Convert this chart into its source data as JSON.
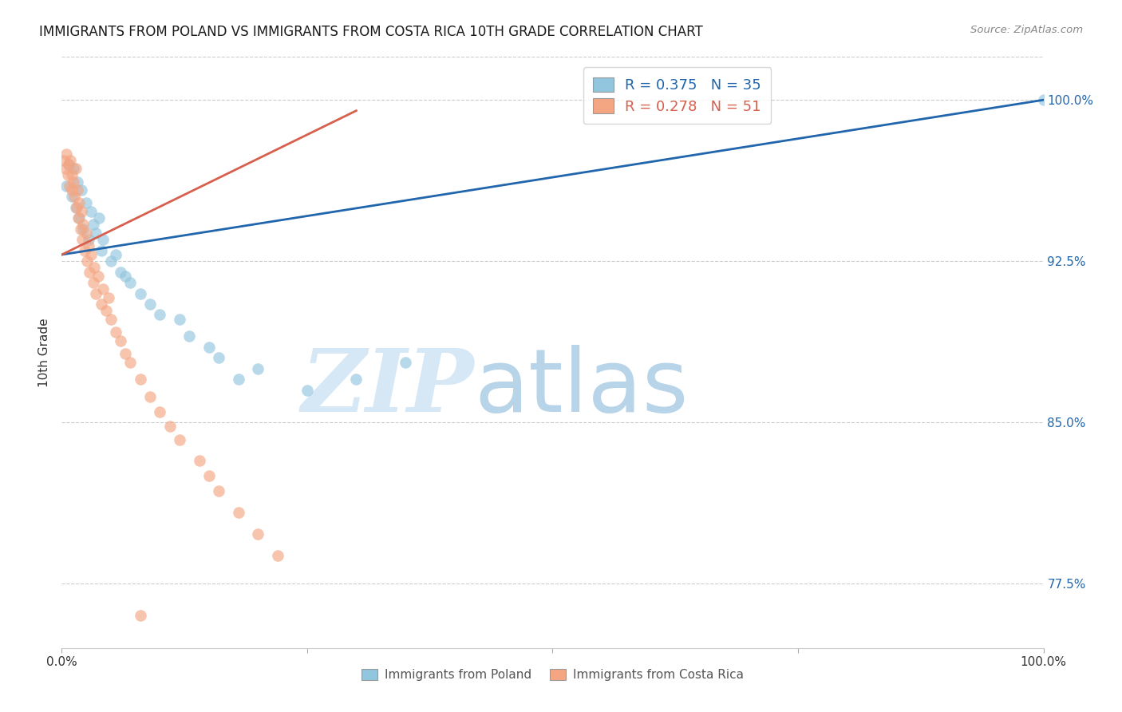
{
  "title": "IMMIGRANTS FROM POLAND VS IMMIGRANTS FROM COSTA RICA 10TH GRADE CORRELATION CHART",
  "source": "Source: ZipAtlas.com",
  "ylabel": "10th Grade",
  "right_yticks": [
    "100.0%",
    "92.5%",
    "85.0%",
    "77.5%"
  ],
  "right_ytick_vals": [
    1.0,
    0.925,
    0.85,
    0.775
  ],
  "blue_R": 0.375,
  "blue_N": 35,
  "pink_R": 0.278,
  "pink_N": 51,
  "blue_color": "#92c5de",
  "pink_color": "#f4a582",
  "blue_line_color": "#2166ac",
  "pink_line_color": "#d6604d",
  "legend_blue_label": "R = 0.375   N = 35",
  "legend_pink_label": "R = 0.278   N = 51",
  "blue_scatter_x": [
    0.005,
    0.007,
    0.01,
    0.012,
    0.014,
    0.016,
    0.018,
    0.02,
    0.022,
    0.025,
    0.027,
    0.03,
    0.032,
    0.035,
    0.038,
    0.04,
    0.042,
    0.05,
    0.055,
    0.06,
    0.065,
    0.07,
    0.08,
    0.09,
    0.1,
    0.12,
    0.13,
    0.15,
    0.16,
    0.18,
    0.2,
    0.25,
    0.3,
    0.35,
    1.0
  ],
  "blue_scatter_y": [
    0.96,
    0.97,
    0.955,
    0.968,
    0.95,
    0.962,
    0.945,
    0.958,
    0.94,
    0.952,
    0.935,
    0.948,
    0.942,
    0.938,
    0.945,
    0.93,
    0.935,
    0.925,
    0.928,
    0.92,
    0.918,
    0.915,
    0.91,
    0.905,
    0.9,
    0.898,
    0.89,
    0.885,
    0.88,
    0.87,
    0.875,
    0.865,
    0.87,
    0.878,
    1.0
  ],
  "pink_scatter_x": [
    0.002,
    0.004,
    0.005,
    0.006,
    0.007,
    0.008,
    0.009,
    0.01,
    0.01,
    0.012,
    0.013,
    0.014,
    0.015,
    0.016,
    0.017,
    0.018,
    0.019,
    0.02,
    0.021,
    0.022,
    0.023,
    0.025,
    0.026,
    0.027,
    0.028,
    0.03,
    0.032,
    0.033,
    0.035,
    0.037,
    0.04,
    0.042,
    0.045,
    0.048,
    0.05,
    0.055,
    0.06,
    0.065,
    0.07,
    0.08,
    0.09,
    0.1,
    0.11,
    0.12,
    0.14,
    0.15,
    0.16,
    0.18,
    0.2,
    0.22,
    0.08
  ],
  "pink_scatter_y": [
    0.972,
    0.968,
    0.975,
    0.965,
    0.97,
    0.96,
    0.972,
    0.958,
    0.965,
    0.962,
    0.955,
    0.968,
    0.95,
    0.958,
    0.945,
    0.952,
    0.94,
    0.948,
    0.935,
    0.942,
    0.93,
    0.938,
    0.925,
    0.932,
    0.92,
    0.928,
    0.915,
    0.922,
    0.91,
    0.918,
    0.905,
    0.912,
    0.902,
    0.908,
    0.898,
    0.892,
    0.888,
    0.882,
    0.878,
    0.87,
    0.862,
    0.855,
    0.848,
    0.842,
    0.832,
    0.825,
    0.818,
    0.808,
    0.798,
    0.788,
    0.76
  ],
  "xlim": [
    0.0,
    1.0
  ],
  "ylim": [
    0.745,
    1.02
  ],
  "background_color": "#ffffff",
  "grid_color": "#cccccc",
  "title_fontsize": 12,
  "axis_label_fontsize": 11,
  "tick_fontsize": 11,
  "blue_trendline_x0": 0.0,
  "blue_trendline_y0": 0.928,
  "blue_trendline_x1": 1.0,
  "blue_trendline_y1": 1.0,
  "pink_trendline_x0": 0.0,
  "pink_trendline_y0": 0.928,
  "pink_trendline_x1": 0.3,
  "pink_trendline_y1": 0.995
}
